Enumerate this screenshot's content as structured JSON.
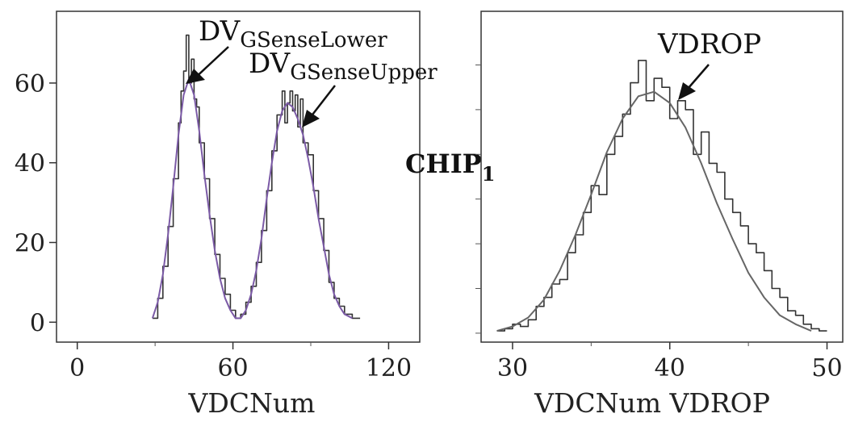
{
  "figure": {
    "chip_label": "CHIP",
    "chip_subscript": "1"
  },
  "chart_data": [
    {
      "type": "histogram",
      "xlabel": "VDCNum",
      "ylabel": "",
      "xlim": [
        -8,
        132
      ],
      "ylim": [
        -5,
        78
      ],
      "xticks": [
        0,
        60,
        120
      ],
      "yticks": [
        0,
        20,
        40,
        60
      ],
      "grid": false,
      "annotations": [
        {
          "text": "DV",
          "subscript": "GSenseLower",
          "x": 44,
          "y": 61
        },
        {
          "text": "DV",
          "subscript": "GSenseUpper",
          "x": 89,
          "y": 50
        }
      ],
      "series": [
        {
          "color": "#333333",
          "style": "step",
          "x": [
            29,
            31,
            33,
            35,
            37,
            39,
            40,
            41,
            42,
            43,
            44,
            45,
            46,
            47,
            49,
            51,
            53,
            55,
            57,
            59,
            61,
            63,
            65,
            67,
            69,
            71,
            73,
            75,
            77,
            79,
            80,
            81,
            82,
            83,
            84,
            85,
            86,
            87,
            89,
            91,
            93,
            95,
            97,
            99,
            101,
            103,
            106
          ],
          "values": [
            1,
            6,
            14,
            24,
            36,
            50,
            58,
            63,
            72,
            60,
            66,
            56,
            54,
            45,
            36,
            26,
            17,
            11,
            7,
            3,
            1,
            2,
            5,
            9,
            15,
            23,
            33,
            43,
            52,
            58,
            50,
            55,
            58,
            53,
            57,
            49,
            56,
            45,
            42,
            33,
            26,
            18,
            10,
            6,
            4,
            2,
            1
          ]
        },
        {
          "color": "#7b5aa6",
          "style": "line",
          "x": [
            29,
            31,
            33,
            35,
            37,
            39,
            41,
            43,
            45,
            47,
            49,
            51,
            53,
            55,
            57,
            59,
            61,
            63,
            65,
            67,
            69,
            71,
            73,
            75,
            77,
            79,
            81,
            83,
            85,
            87,
            89,
            91,
            93,
            95,
            97,
            99,
            101,
            103,
            106
          ],
          "values": [
            1,
            5,
            12,
            22,
            34,
            47,
            57,
            61,
            57,
            48,
            37,
            27,
            18,
            11,
            6,
            3,
            1,
            1,
            3,
            7,
            13,
            21,
            31,
            40,
            48,
            53,
            55,
            54,
            51,
            47,
            41,
            34,
            26,
            19,
            12,
            7,
            4,
            2,
            1
          ]
        }
      ]
    },
    {
      "type": "histogram",
      "xlabel": "VDCNum VDROP",
      "ylabel": "",
      "xlim": [
        28,
        51
      ],
      "ylim": [
        -2,
        72
      ],
      "xticks": [
        30,
        40,
        50
      ],
      "yticks": [],
      "grid": false,
      "annotations": [
        {
          "text": "VDROP",
          "x": 40.2,
          "y": 56
        }
      ],
      "series": [
        {
          "color": "#333333",
          "style": "step",
          "x": [
            29,
            29.5,
            30,
            30.5,
            31,
            31.5,
            32,
            32.5,
            33,
            33.5,
            34,
            34.5,
            35,
            35.5,
            36,
            36.5,
            37,
            37.5,
            38,
            38.5,
            39,
            39.5,
            40,
            40.5,
            41,
            41.5,
            42,
            42.5,
            43,
            43.5,
            44,
            44.5,
            45,
            45.5,
            46,
            46.5,
            47,
            47.5,
            48,
            48.5,
            49,
            49.5
          ],
          "values": [
            0.5,
            1,
            2,
            1.5,
            3,
            6,
            8,
            11,
            12,
            18,
            22,
            27,
            33,
            31,
            40,
            44,
            49,
            56,
            61,
            52,
            57,
            55,
            48,
            52,
            50,
            40,
            45,
            38,
            36,
            30,
            27,
            24,
            20,
            18,
            14,
            10,
            8,
            5,
            4,
            2,
            1,
            0.5
          ]
        },
        {
          "color": "#666666",
          "style": "line",
          "x": [
            29,
            30,
            31,
            32,
            33,
            34,
            35,
            36,
            37,
            38,
            39,
            40,
            41,
            42,
            43,
            44,
            45,
            46,
            47,
            48,
            49
          ],
          "values": [
            0.5,
            1.5,
            3.5,
            7.5,
            14,
            22,
            31,
            40.5,
            48,
            53,
            54,
            51.5,
            46,
            38,
            29,
            21,
            13.5,
            8,
            4,
            2,
            0.5
          ]
        }
      ]
    }
  ]
}
